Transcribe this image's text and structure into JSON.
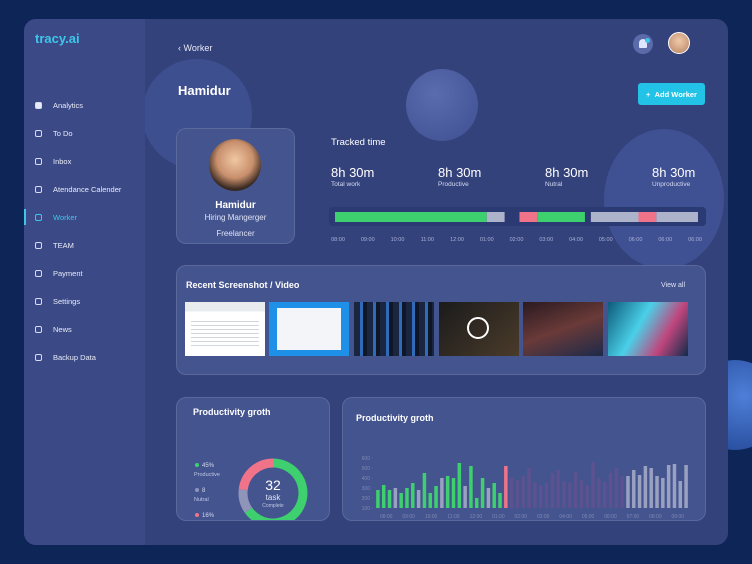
{
  "brand": "tracy.ai",
  "nav": {
    "items": [
      "Analytics",
      "To Do",
      "Inbox",
      "Atendance Calender",
      "Worker",
      "TEAM",
      "Payment",
      "Settings",
      "News",
      "Backup Data"
    ],
    "active": 4
  },
  "breadcrumb": "Worker",
  "page_title": "Hamidur",
  "add_button": "Add Worker",
  "profile": {
    "name": "Hamidur",
    "role": "Hiring Mangerger",
    "type": "Freelancer"
  },
  "tracked": {
    "title": "Tracked time",
    "stats": [
      {
        "value": "8h 30m",
        "label": "Total work"
      },
      {
        "value": "8h 30m",
        "label": "Productive"
      },
      {
        "value": "8h 30m",
        "label": "Nutral"
      },
      {
        "value": "8h 30m",
        "label": "Unproductive"
      }
    ],
    "ticks": [
      "08:00",
      "09:00",
      "10:00",
      "11:00",
      "12:00",
      "01:00",
      "02:00",
      "03:00",
      "04:00",
      "05:00",
      "06:00",
      "06:00",
      "06:00"
    ],
    "segments": [
      {
        "start": -0.1,
        "end": 5.0,
        "color": "#3ecf6e"
      },
      {
        "start": 5.0,
        "end": 5.6,
        "color": "#aeb3cc"
      },
      {
        "start": 6.1,
        "end": 6.7,
        "color": "#f0738a"
      },
      {
        "start": 6.7,
        "end": 8.3,
        "color": "#3ecf6e"
      },
      {
        "start": 8.5,
        "end": 10.1,
        "color": "#aeb3cc"
      },
      {
        "start": 10.1,
        "end": 10.7,
        "color": "#f0738a"
      },
      {
        "start": 10.7,
        "end": 12.1,
        "color": "#aeb3cc"
      }
    ]
  },
  "screenshots": {
    "title": "Recent Screenshot / Video",
    "link": "View all"
  },
  "donut": {
    "title": "Productivity groth",
    "center_value": "32",
    "center_unit": "task",
    "center_label": "Complete",
    "items": [
      {
        "name": "Productive",
        "value": 45,
        "value_label": "45%",
        "color": "#3ecf6e"
      },
      {
        "name": "Nutral",
        "value": 8,
        "value_label": "8",
        "color": "#8e95b8"
      },
      {
        "name": "Unproductive",
        "value": 16,
        "value_label": "16%",
        "color": "#f0738a"
      }
    ]
  },
  "bar_chart": {
    "type": "bar",
    "title": "Productivity groth",
    "ylim": [
      100,
      600
    ],
    "yticks": [
      100,
      200,
      300,
      400,
      500,
      600
    ],
    "xlabels": [
      "08:00",
      "09:00",
      "10:00",
      "11:00",
      "12:00",
      "01:00",
      "02:00",
      "03:00",
      "04:00",
      "05:00",
      "06:00",
      "07:00",
      "08:00",
      "09:00"
    ],
    "values": [
      280,
      330,
      280,
      300,
      250,
      300,
      350,
      280,
      450,
      250,
      320,
      400,
      420,
      400,
      550,
      320,
      520,
      200,
      400,
      300,
      350,
      250,
      520,
      400,
      380,
      420,
      500,
      360,
      330,
      350,
      450,
      480,
      370,
      350,
      460,
      380,
      330,
      560,
      400,
      360,
      450,
      500,
      420,
      420,
      480,
      430,
      520,
      500,
      420,
      400,
      530,
      540,
      370,
      530
    ],
    "colors": [
      "#3ecf6e",
      "#3ecf6e",
      "#3ecf6e",
      "#9aa0c0",
      "#3ecf6e",
      "#3ecf6e",
      "#3ecf6e",
      "#9aa0c0",
      "#3ecf6e",
      "#3ecf6e",
      "#3ecf6e",
      "#9aa0c0",
      "#3ecf6e",
      "#3ecf6e",
      "#3ecf6e",
      "#9aa0c0",
      "#3ecf6e",
      "#3ecf6e",
      "#3ecf6e",
      "#9aa0c0",
      "#3ecf6e",
      "#3ecf6e",
      "#f0738a",
      "#5c5290",
      "#5c5290",
      "#5c5290",
      "#5c5290",
      "#5c5290",
      "#5c5290",
      "#5c5290",
      "#5c5290",
      "#5c5290",
      "#5c5290",
      "#5c5290",
      "#5c5290",
      "#5c5290",
      "#5c5290",
      "#5c5290",
      "#5c5290",
      "#5c5290",
      "#5c5290",
      "#5c5290",
      "#5c5290",
      "#9aa0c0",
      "#9aa0c0",
      "#9aa0c0",
      "#9aa0c0",
      "#9aa0c0",
      "#9aa0c0",
      "#9aa0c0",
      "#9aa0c0",
      "#9aa0c0",
      "#9aa0c0",
      "#9aa0c0"
    ]
  }
}
